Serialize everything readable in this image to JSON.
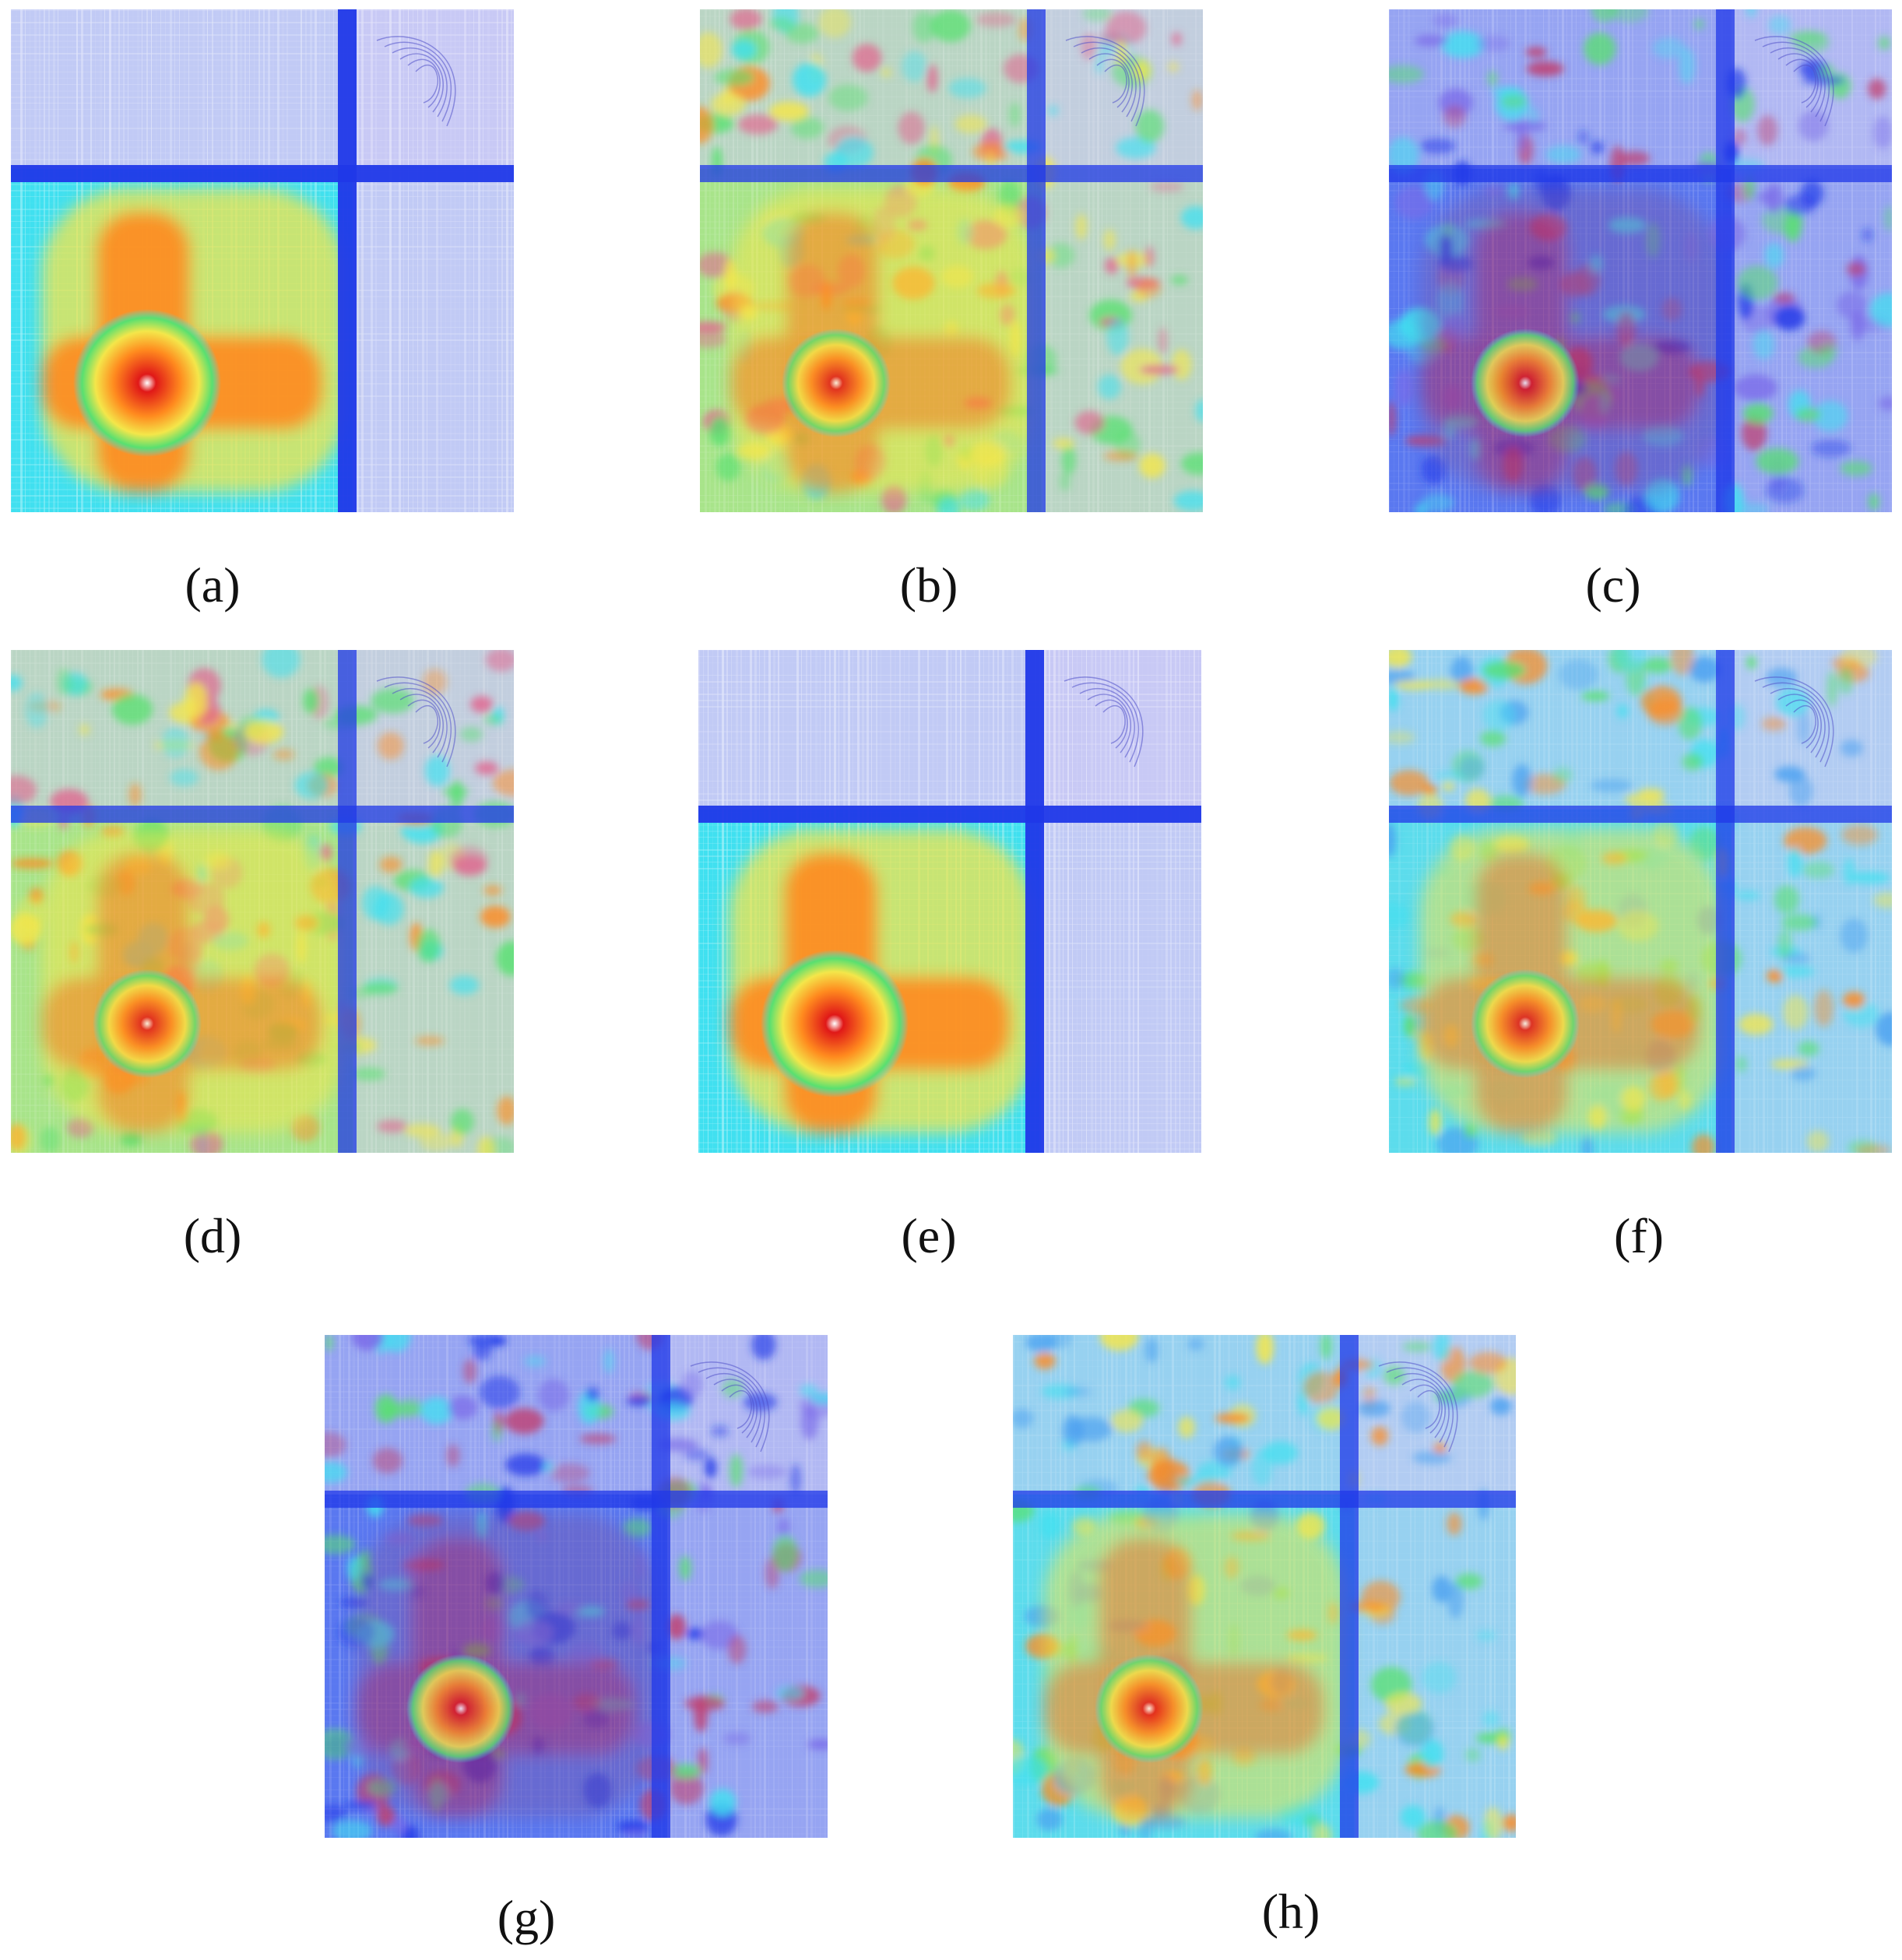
{
  "panels": [
    {
      "id": "a",
      "label": "(a)",
      "style": "smooth-strong"
    },
    {
      "id": "b",
      "label": "(b)",
      "style": "noisy-warm"
    },
    {
      "id": "c",
      "label": "(c)",
      "style": "noisy-cool"
    },
    {
      "id": "d",
      "label": "(d)",
      "style": "noisy-warm"
    },
    {
      "id": "e",
      "label": "(e)",
      "style": "smooth-strong"
    },
    {
      "id": "f",
      "label": "(f)",
      "style": "noisy-mixed"
    },
    {
      "id": "g",
      "label": "(g)",
      "style": "noisy-cool"
    },
    {
      "id": "h",
      "label": "(h)",
      "style": "noisy-mixed"
    }
  ],
  "colors": {
    "hot": "#e01818",
    "warm": "#ff8a1e",
    "yellow": "#f4e64a",
    "green": "#58e070",
    "cyan": "#40e0f0",
    "blue": "#2038e8",
    "lavender": "#c8c8f4",
    "white": "#ffffff"
  }
}
